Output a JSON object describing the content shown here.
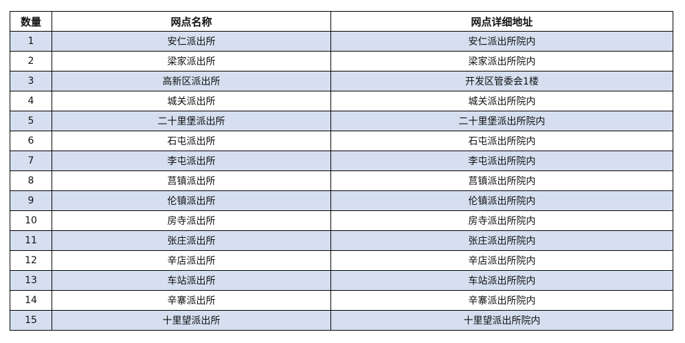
{
  "table": {
    "headers": [
      "数量",
      "网点名称",
      "网点详细地址"
    ],
    "row_shading": "#d5dff0",
    "rows": [
      [
        "1",
        "安仁派出所",
        "安仁派出所院内"
      ],
      [
        "2",
        "梁家派出所",
        "梁家派出所院内"
      ],
      [
        "3",
        "高新区派出所",
        "开发区管委会1楼"
      ],
      [
        "4",
        "城关派出所",
        "城关派出所院内"
      ],
      [
        "5",
        "二十里堡派出所",
        "二十里堡派出所院内"
      ],
      [
        "6",
        "石屯派出所",
        "石屯派出所院内"
      ],
      [
        "7",
        "李屯派出所",
        "李屯派出所院内"
      ],
      [
        "8",
        "莒镇派出所",
        "莒镇派出所院内"
      ],
      [
        "9",
        "伦镇派出所",
        "伦镇派出所院内"
      ],
      [
        "10",
        "房寺派出所",
        "房寺派出所院内"
      ],
      [
        "11",
        "张庄派出所",
        "张庄派出所院内"
      ],
      [
        "12",
        "辛店派出所",
        "辛店派出所院内"
      ],
      [
        "13",
        "车站派出所",
        "车站派出所院内"
      ],
      [
        "14",
        "辛寨派出所",
        "辛寨派出所院内"
      ],
      [
        "15",
        "十里望派出所",
        "十里望派出所院内"
      ]
    ]
  }
}
